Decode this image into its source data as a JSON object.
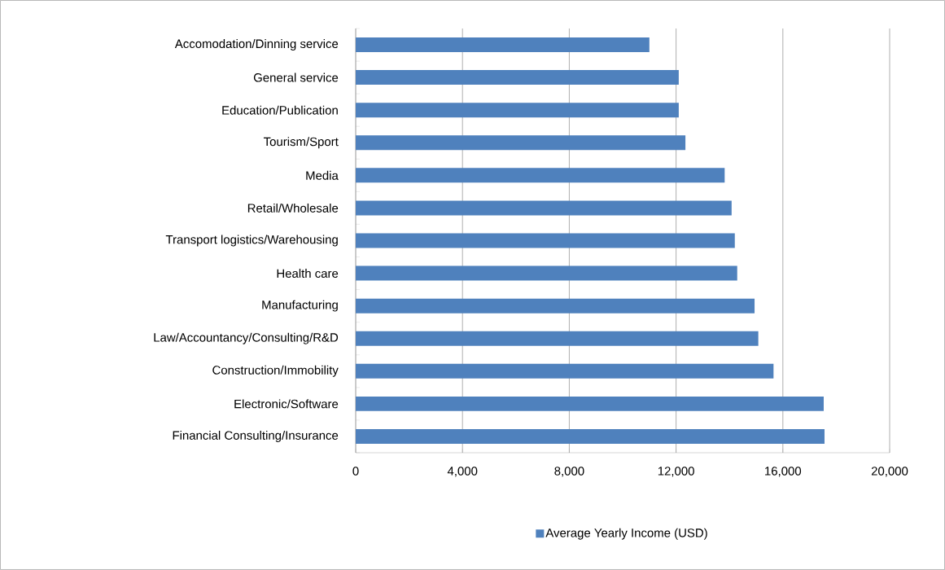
{
  "chart_data": {
    "type": "bar",
    "orientation": "horizontal",
    "categories": [
      "Accomodation/Dinning service",
      "General service",
      "Education/Publication",
      "Tourism/Sport",
      "Media",
      "Retail/Wholesale",
      "Transport logistics/Warehousing",
      "Health care",
      "Manufacturing",
      "Law/Accountancy/Consulting/R&D",
      "Construction/Immobility",
      "Electronic/Software",
      "Financial Consulting/Insurance"
    ],
    "series": [
      {
        "name": "Average Yearly Income (USD)",
        "color": "#4f81bd",
        "values": [
          11000,
          12100,
          12100,
          12350,
          13820,
          14080,
          14200,
          14290,
          14940,
          15080,
          15650,
          17530,
          17560
        ]
      }
    ],
    "xlim": [
      0,
      20000
    ],
    "xticks": [
      0,
      {
        "value": 4000,
        "label": "4,000"
      },
      {
        "value": 8000,
        "label": "8,000"
      },
      {
        "value": 12000,
        "label": "12,000"
      },
      {
        "value": 16000,
        "label": "16,000"
      },
      {
        "value": 20000,
        "label": "20,000"
      }
    ],
    "grid": "x",
    "legend": "bottom"
  }
}
